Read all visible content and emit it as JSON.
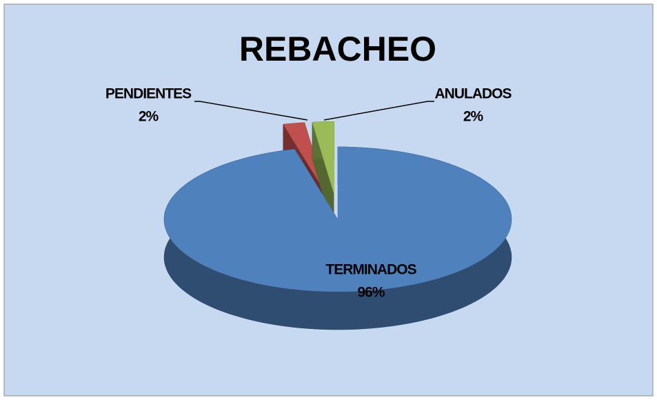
{
  "chart_data": {
    "type": "pie",
    "title": "REBACHEO",
    "categories": [
      "TERMINADOS",
      "PENDIENTES",
      "ANULADOS"
    ],
    "values": [
      96,
      2,
      2
    ],
    "value_labels": [
      "96%",
      "2%",
      "2%"
    ],
    "colors": [
      "#4f81bd",
      "#c0504d",
      "#9bbb59"
    ]
  }
}
